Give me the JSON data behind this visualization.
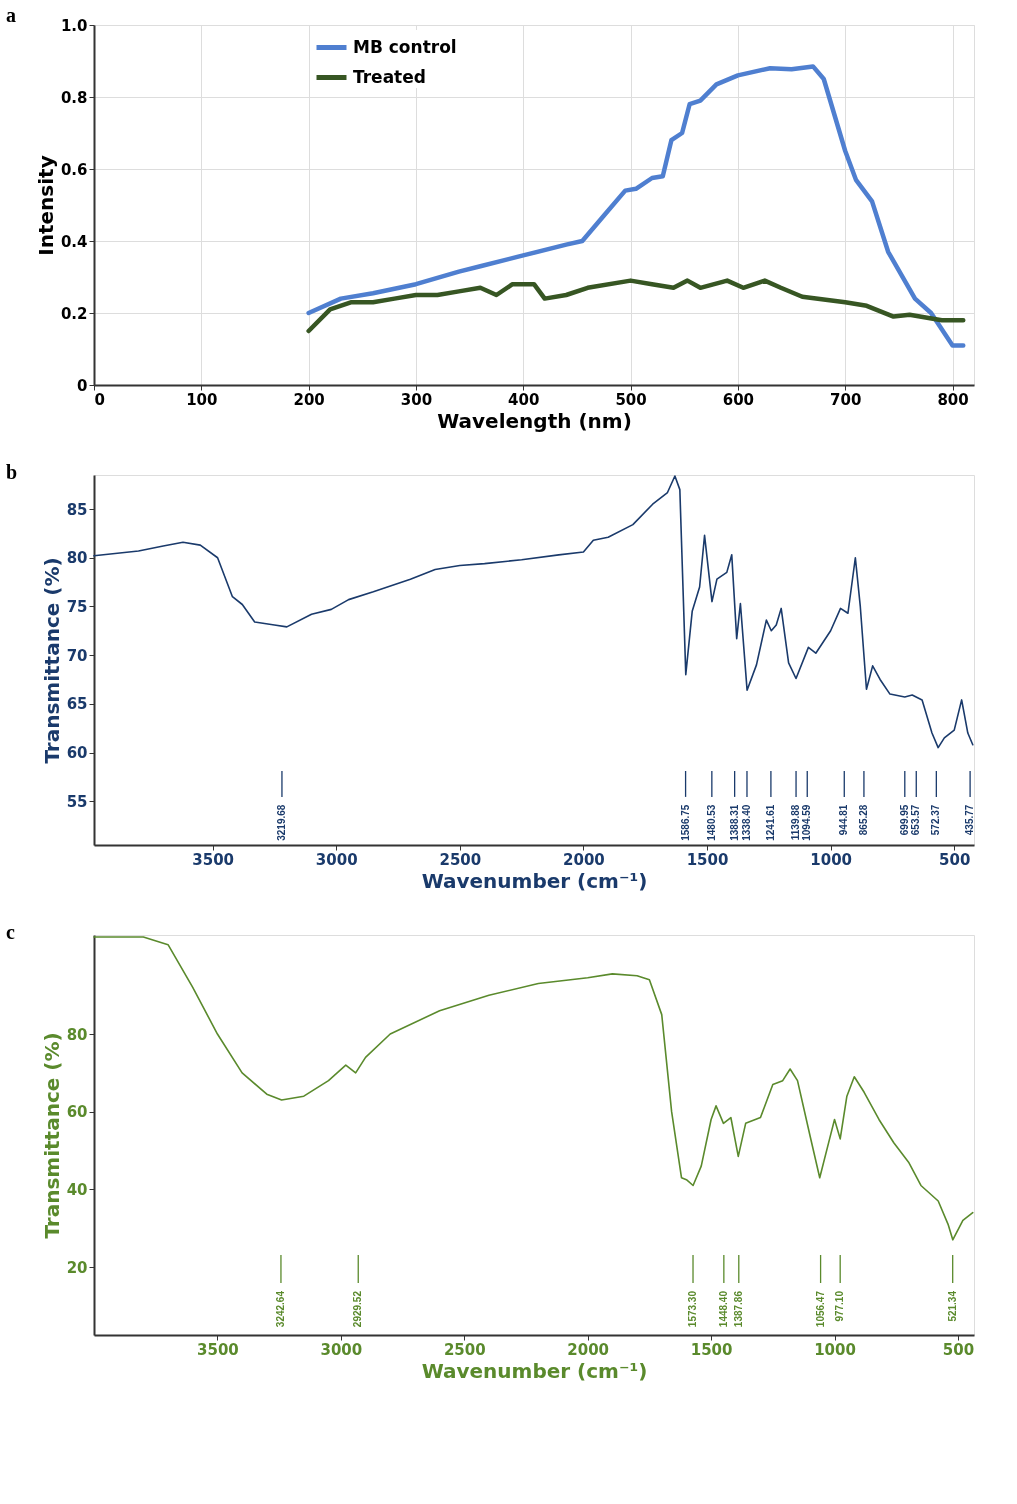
{
  "chart_data": [
    {
      "type": "line",
      "title": "a",
      "xlabel": "Wavelength (nm)",
      "ylabel": "Intensity",
      "xlim": [
        0,
        820
      ],
      "xticks": [
        0,
        100,
        200,
        300,
        400,
        500,
        600,
        700,
        800
      ],
      "ylim": [
        0,
        1.0
      ],
      "yticks": [
        0,
        0.2,
        0.4,
        0.6,
        0.8,
        {
          "value": 1.0,
          "label": "1.0"
        }
      ],
      "grid": true,
      "legend": "top left",
      "series": [
        {
          "name": "MB control",
          "color": "#4f7fd0",
          "x": [
            200,
            230,
            260,
            300,
            340,
            360,
            400,
            440,
            455,
            475,
            495,
            505,
            520,
            530,
            538,
            548,
            555,
            565,
            580,
            600,
            630,
            650,
            670,
            680,
            700,
            710,
            725,
            740,
            765,
            780,
            800,
            810
          ],
          "values": [
            0.2,
            0.24,
            0.255,
            0.28,
            0.315,
            0.33,
            0.36,
            0.39,
            0.4,
            0.47,
            0.54,
            0.545,
            0.575,
            0.58,
            0.68,
            0.7,
            0.78,
            0.79,
            0.835,
            0.86,
            0.88,
            0.877,
            0.885,
            0.85,
            0.65,
            0.57,
            0.51,
            0.37,
            0.24,
            0.2,
            0.11,
            0.11
          ]
        },
        {
          "name": "Treated",
          "color": "#375623",
          "x": [
            200,
            220,
            240,
            260,
            280,
            300,
            320,
            340,
            360,
            375,
            390,
            410,
            420,
            440,
            460,
            500,
            520,
            540,
            553,
            565,
            590,
            605,
            625,
            640,
            660,
            700,
            720,
            745,
            760,
            790,
            810
          ],
          "values": [
            0.15,
            0.21,
            0.23,
            0.23,
            0.24,
            0.25,
            0.25,
            0.26,
            0.27,
            0.25,
            0.28,
            0.28,
            0.24,
            0.25,
            0.27,
            0.29,
            0.28,
            0.27,
            0.29,
            0.27,
            0.29,
            0.27,
            0.29,
            0.27,
            0.245,
            0.23,
            0.22,
            0.19,
            0.195,
            0.18,
            0.18
          ]
        }
      ]
    },
    {
      "type": "line",
      "title": "b",
      "xlabel": "Wavenumber (cm⁻¹)",
      "ylabel": "Transmittance (%)",
      "xlim": [
        3980,
        420
      ],
      "xticks": [
        3500,
        3000,
        2500,
        2000,
        1500,
        1000,
        500
      ],
      "ylim": [
        50.5,
        88.5
      ],
      "yticks": [
        55,
        60,
        65,
        70,
        75,
        80,
        85
      ],
      "series": [
        {
          "color": "#1a3a6b",
          "x": [
            3980,
            3800,
            3700,
            3620,
            3550,
            3480,
            3420,
            3380,
            3330,
            3250,
            3200,
            3100,
            3020,
            2950,
            2850,
            2700,
            2600,
            2500,
            2400,
            2250,
            2100,
            2000,
            1960,
            1900,
            1800,
            1720,
            1660,
            1630,
            1610,
            1586,
            1560,
            1530,
            1510,
            1480,
            1460,
            1420,
            1400,
            1380,
            1365,
            1338,
            1300,
            1260,
            1240,
            1220,
            1200,
            1170,
            1140,
            1090,
            1060,
            1000,
            960,
            930,
            900,
            880,
            855,
            830,
            800,
            760,
            700,
            670,
            630,
            590,
            565,
            540,
            500,
            470,
            445,
            425
          ],
          "values": [
            80.2,
            80.7,
            81.2,
            81.6,
            81.3,
            80,
            76,
            75.2,
            73.4,
            73.1,
            72.9,
            74.2,
            74.7,
            75.7,
            76.5,
            77.8,
            78.8,
            79.2,
            79.4,
            79.8,
            80.3,
            80.6,
            81.8,
            82.1,
            83.4,
            85.5,
            86.7,
            88.4,
            87,
            68,
            74.5,
            77,
            82.3,
            75.5,
            77.8,
            78.5,
            80.3,
            71.7,
            75.3,
            66.4,
            69,
            73.6,
            72.5,
            73.1,
            74.8,
            69.2,
            67.6,
            70.8,
            70.2,
            72.5,
            74.8,
            74.3,
            80,
            75,
            66.5,
            68.9,
            67.5,
            66,
            65.7,
            65.9,
            65.4,
            62,
            60.5,
            61.5,
            62.3,
            65.4,
            62,
            60.8
          ]
        }
      ],
      "ref_lines": [
        {
          "axis": "x",
          "value": 3219.68,
          "label": "3219.68"
        },
        {
          "axis": "x",
          "value": 1586.75,
          "label": "1586.75"
        },
        {
          "axis": "x",
          "value": 1480.53,
          "label": "1480.53"
        },
        {
          "axis": "x",
          "value": 1388.31,
          "label": "1388.31"
        },
        {
          "axis": "x",
          "value": 1338.4,
          "label": "1338.40"
        },
        {
          "axis": "x",
          "value": 1241.61,
          "label": "1241.61"
        },
        {
          "axis": "x",
          "value": 1139.88,
          "label": "1139.88"
        },
        {
          "axis": "x",
          "value": 1094.59,
          "label": "1094.59"
        },
        {
          "axis": "x",
          "value": 944.81,
          "label": "944.81"
        },
        {
          "axis": "x",
          "value": 865.28,
          "label": "865.28"
        },
        {
          "axis": "x",
          "value": 699.95,
          "label": "699.95"
        },
        {
          "axis": "x",
          "value": 653.57,
          "label": "653.57"
        },
        {
          "axis": "x",
          "value": 572.37,
          "label": "572.37"
        },
        {
          "axis": "x",
          "value": 435.77,
          "label": "435.77"
        }
      ]
    },
    {
      "type": "line",
      "title": "c",
      "xlabel": "Wavenumber (cm⁻¹)",
      "ylabel": "Transmittance (%)",
      "xlim": [
        4000,
        435
      ],
      "xticks": [
        3500,
        3000,
        2500,
        2000,
        1500,
        1000,
        500
      ],
      "ylim": [
        2.5,
        105.5
      ],
      "yticks": [
        20,
        40,
        60,
        80
      ],
      "series": [
        {
          "color": "#5a8a2c",
          "x": [
            4000,
            3800,
            3700,
            3600,
            3500,
            3400,
            3300,
            3240,
            3150,
            3050,
            2980,
            2940,
            2900,
            2800,
            2600,
            2400,
            2200,
            2000,
            1900,
            1800,
            1750,
            1700,
            1660,
            1620,
            1600,
            1573,
            1540,
            1500,
            1480,
            1450,
            1420,
            1390,
            1360,
            1300,
            1250,
            1210,
            1180,
            1150,
            1100,
            1060,
            1020,
            1000,
            977,
            950,
            920,
            880,
            820,
            760,
            700,
            650,
            580,
            540,
            521,
            480,
            440
          ],
          "values": [
            105,
            105,
            103,
            92,
            80,
            70,
            64.5,
            63,
            64,
            68,
            72,
            70,
            74,
            80,
            86,
            90,
            93,
            94.5,
            95.5,
            95,
            94,
            85,
            60,
            43,
            42.5,
            41,
            46,
            58,
            61.5,
            57,
            58.5,
            48.5,
            57,
            58.5,
            67,
            68,
            71,
            68,
            54,
            43,
            53,
            58,
            53,
            64,
            69,
            65,
            58,
            52,
            47,
            41,
            37,
            31,
            27,
            32,
            34
          ]
        }
      ],
      "ref_lines": [
        {
          "axis": "x",
          "value": 3242.64,
          "label": "3242.64"
        },
        {
          "axis": "x",
          "value": 2929.52,
          "label": "2929.52"
        },
        {
          "axis": "x",
          "value": 1573.3,
          "label": "1573.30"
        },
        {
          "axis": "x",
          "value": 1448.4,
          "label": "1448.40"
        },
        {
          "axis": "x",
          "value": 1387.86,
          "label": "1387.86"
        },
        {
          "axis": "x",
          "value": 1056.47,
          "label": "1056.47"
        },
        {
          "axis": "x",
          "value": 977.1,
          "label": "977.10"
        },
        {
          "axis": "x",
          "value": 521.34,
          "label": "521.34"
        }
      ]
    }
  ]
}
